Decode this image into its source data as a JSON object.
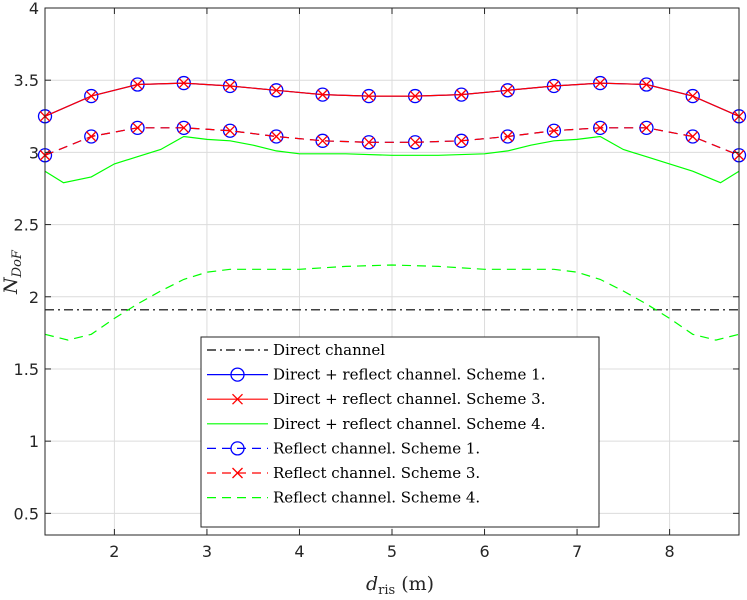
{
  "chart_data": {
    "type": "line",
    "title": "",
    "xlabel_main": "d",
    "xlabel_sub": "ris",
    "xlabel_unit": "(m)",
    "ylabel_main": "N",
    "ylabel_sub": "DoF",
    "xlim": [
      1.25,
      8.75
    ],
    "ylim": [
      0.35,
      4.0
    ],
    "xticks": [
      2,
      3,
      4,
      5,
      6,
      7,
      8
    ],
    "yticks": [
      0.5,
      1,
      1.5,
      2,
      2.5,
      3,
      3.5,
      4
    ],
    "ytick_labels": [
      "0.5",
      "1",
      "1.5",
      "2",
      "2.5",
      "3",
      "3.5",
      "4"
    ],
    "grid": true,
    "legend_position": "bottom-center",
    "series": [
      {
        "name": "Direct channel",
        "color": "#000000",
        "dash": "dashdot",
        "marker": "none",
        "x": [
          1.25,
          8.75
        ],
        "y": [
          1.91,
          1.91
        ]
      },
      {
        "name": "Direct + reflect channel. Scheme 1.",
        "color": "#0000ff",
        "dash": "solid",
        "marker": "circle",
        "x": [
          1.25,
          1.75,
          2.25,
          2.75,
          3.25,
          3.75,
          4.25,
          4.75,
          5.25,
          5.75,
          6.25,
          6.75,
          7.25,
          7.75,
          8.25,
          8.75
        ],
        "y": [
          3.25,
          3.39,
          3.47,
          3.48,
          3.46,
          3.43,
          3.4,
          3.39,
          3.39,
          3.4,
          3.43,
          3.46,
          3.48,
          3.47,
          3.39,
          3.25
        ]
      },
      {
        "name": "Direct + reflect channel. Scheme 3.",
        "color": "#ff0000",
        "dash": "solid",
        "marker": "x",
        "x": [
          1.25,
          1.75,
          2.25,
          2.75,
          3.25,
          3.75,
          4.25,
          4.75,
          5.25,
          5.75,
          6.25,
          6.75,
          7.25,
          7.75,
          8.25,
          8.75
        ],
        "y": [
          3.25,
          3.39,
          3.47,
          3.48,
          3.46,
          3.43,
          3.4,
          3.39,
          3.39,
          3.4,
          3.43,
          3.46,
          3.48,
          3.47,
          3.39,
          3.25
        ]
      },
      {
        "name": "Direct + reflect channel. Scheme 4.",
        "color": "#00ff00",
        "dash": "solid",
        "marker": "none",
        "x": [
          1.25,
          1.45,
          1.75,
          2.0,
          2.25,
          2.5,
          2.75,
          3.0,
          3.25,
          3.5,
          3.75,
          4.0,
          4.5,
          5.0,
          5.5,
          6.0,
          6.25,
          6.5,
          6.75,
          7.0,
          7.25,
          7.5,
          7.75,
          8.0,
          8.25,
          8.55,
          8.75
        ],
        "y": [
          2.87,
          2.79,
          2.83,
          2.92,
          2.97,
          3.02,
          3.11,
          3.09,
          3.08,
          3.05,
          3.01,
          2.99,
          2.99,
          2.98,
          2.98,
          2.99,
          3.01,
          3.05,
          3.08,
          3.09,
          3.11,
          3.02,
          2.97,
          2.92,
          2.87,
          2.79,
          2.87
        ]
      },
      {
        "name": "Reflect channel. Scheme 1.",
        "color": "#0000ff",
        "dash": "dashed",
        "marker": "circle",
        "x": [
          1.25,
          1.75,
          2.25,
          2.75,
          3.25,
          3.75,
          4.25,
          4.75,
          5.25,
          5.75,
          6.25,
          6.75,
          7.25,
          7.75,
          8.25,
          8.75
        ],
        "y": [
          2.98,
          3.11,
          3.17,
          3.17,
          3.15,
          3.11,
          3.08,
          3.07,
          3.07,
          3.08,
          3.11,
          3.15,
          3.17,
          3.17,
          3.11,
          2.98
        ]
      },
      {
        "name": "Reflect channel. Scheme 3.",
        "color": "#ff0000",
        "dash": "dashed",
        "marker": "x",
        "x": [
          1.25,
          1.75,
          2.25,
          2.75,
          3.25,
          3.75,
          4.25,
          4.75,
          5.25,
          5.75,
          6.25,
          6.75,
          7.25,
          7.75,
          8.25,
          8.75
        ],
        "y": [
          2.98,
          3.11,
          3.17,
          3.17,
          3.15,
          3.11,
          3.08,
          3.07,
          3.07,
          3.08,
          3.11,
          3.15,
          3.17,
          3.17,
          3.11,
          2.98
        ]
      },
      {
        "name": "Reflect channel. Scheme 4.",
        "color": "#00ff00",
        "dash": "dashed",
        "marker": "none",
        "x": [
          1.25,
          1.5,
          1.75,
          2.0,
          2.25,
          2.5,
          2.75,
          3.0,
          3.25,
          4.0,
          4.5,
          5.0,
          5.5,
          6.0,
          6.75,
          7.0,
          7.25,
          7.5,
          7.75,
          8.0,
          8.25,
          8.5,
          8.75
        ],
        "y": [
          1.74,
          1.7,
          1.74,
          1.85,
          1.95,
          2.04,
          2.12,
          2.17,
          2.19,
          2.19,
          2.21,
          2.22,
          2.21,
          2.19,
          2.19,
          2.17,
          2.12,
          2.04,
          1.95,
          1.85,
          1.74,
          1.7,
          1.74
        ]
      }
    ]
  }
}
